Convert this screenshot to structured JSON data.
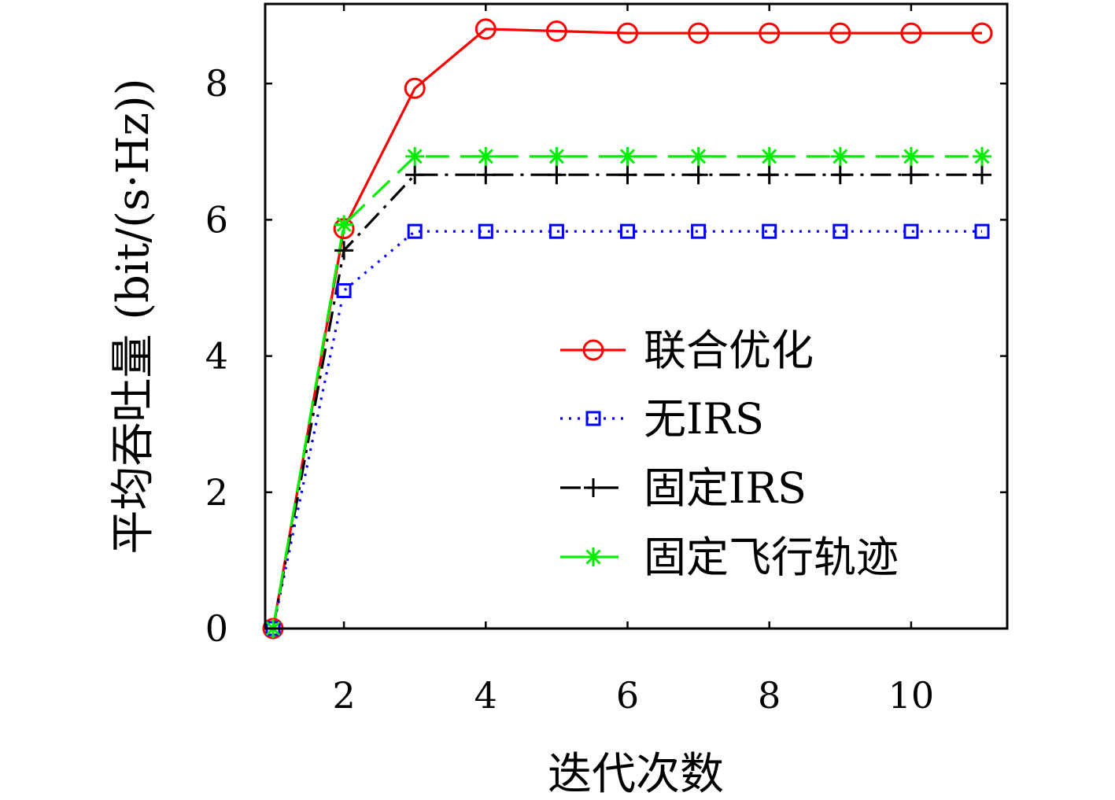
{
  "chart_data": {
    "type": "line",
    "xlabel": "迭代次数",
    "ylabel": "平均吞吐量 (bit/(s·Hz))",
    "xlim": [
      1,
      11.4
    ],
    "ylim": [
      0,
      9.2
    ],
    "xticks": [
      2,
      4,
      6,
      8,
      10
    ],
    "yticks": [
      0,
      2,
      4,
      6,
      8
    ],
    "xtick_labels": [
      "2",
      "4",
      "6",
      "8",
      "10"
    ],
    "ytick_labels": [
      "0",
      "2",
      "4",
      "6",
      "8"
    ],
    "grid": false,
    "legend_position": "lower-right",
    "x": [
      1,
      2,
      3,
      4,
      5,
      6,
      7,
      8,
      9,
      10,
      11
    ],
    "series": [
      {
        "name": "联合优化",
        "color": "#ff0000",
        "line_style": "solid",
        "marker": "circle",
        "values": [
          0,
          5.87,
          7.93,
          8.8,
          8.77,
          8.74,
          8.74,
          8.74,
          8.74,
          8.74,
          8.74
        ]
      },
      {
        "name": "无IRS",
        "color": "#0000ff",
        "line_style": "dotted",
        "marker": "square",
        "values": [
          0,
          4.96,
          5.83,
          5.83,
          5.83,
          5.83,
          5.83,
          5.83,
          5.83,
          5.83,
          5.83
        ]
      },
      {
        "name": "固定IRS",
        "color": "#000000",
        "line_style": "dashdot",
        "marker": "plus",
        "values": [
          0,
          5.55,
          6.66,
          6.66,
          6.66,
          6.66,
          6.66,
          6.66,
          6.66,
          6.66,
          6.66
        ]
      },
      {
        "name": "固定飞行轨迹",
        "color": "#00ee00",
        "line_style": "dashed",
        "marker": "asterisk",
        "values": [
          0,
          5.93,
          6.93,
          6.93,
          6.93,
          6.93,
          6.93,
          6.93,
          6.93,
          6.93,
          6.93
        ]
      }
    ]
  }
}
